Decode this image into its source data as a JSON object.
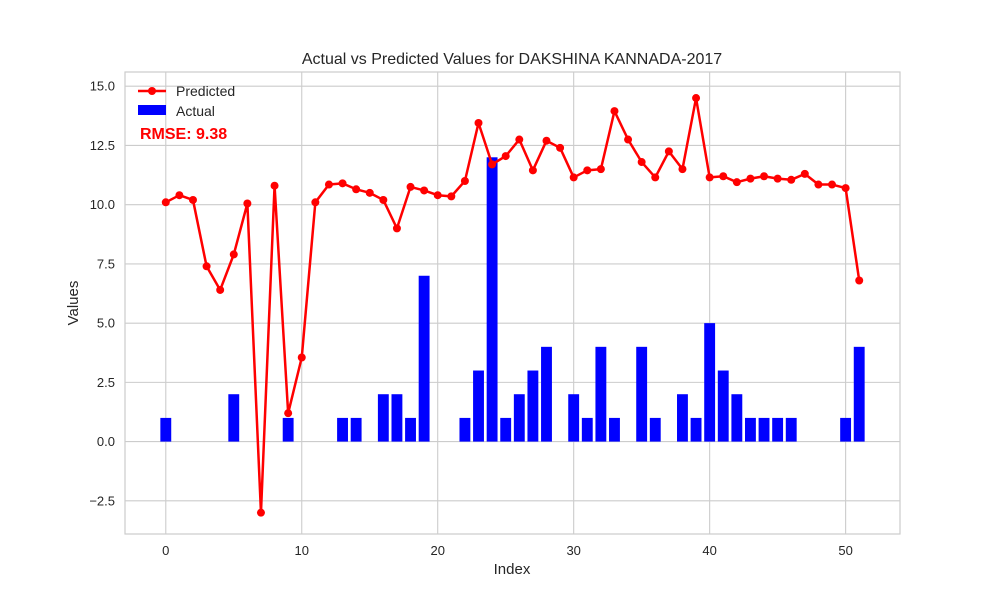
{
  "chart_data": {
    "type": "bar",
    "title": "Actual vs Predicted Values for DAKSHINA KANNADA-2017",
    "xlabel": "Index",
    "ylabel": "Values",
    "xlim": [
      -3,
      54
    ],
    "ylim": [
      -3.9,
      15.6
    ],
    "xticks": [
      0,
      10,
      20,
      30,
      40,
      50
    ],
    "yticks": [
      -2.5,
      0.0,
      2.5,
      5.0,
      7.5,
      10.0,
      12.5,
      15.0
    ],
    "ytick_labels": [
      "−2.5",
      "0.0",
      "2.5",
      "5.0",
      "7.5",
      "10.0",
      "12.5",
      "15.0"
    ],
    "grid": true,
    "legend_position": "top-left",
    "annotation": "RMSE: 9.38",
    "x": [
      0,
      1,
      2,
      3,
      4,
      5,
      6,
      7,
      8,
      9,
      10,
      11,
      12,
      13,
      14,
      15,
      16,
      17,
      18,
      19,
      20,
      21,
      22,
      23,
      24,
      25,
      26,
      27,
      28,
      29,
      30,
      31,
      32,
      33,
      34,
      35,
      36,
      37,
      38,
      39,
      40,
      41,
      42,
      43,
      44,
      45,
      46,
      47,
      48,
      49,
      50,
      51
    ],
    "series": [
      {
        "name": "Predicted",
        "kind": "line",
        "color": "#ff0000",
        "values": [
          10.1,
          10.4,
          10.2,
          7.4,
          6.4,
          7.9,
          10.05,
          -3.0,
          10.8,
          1.2,
          3.55,
          10.1,
          10.85,
          10.9,
          10.65,
          10.5,
          10.2,
          9.0,
          10.75,
          10.6,
          10.4,
          10.35,
          11.0,
          13.45,
          11.7,
          12.05,
          12.75,
          11.45,
          12.7,
          12.4,
          11.15,
          11.45,
          11.5,
          13.95,
          12.75,
          11.8,
          11.15,
          12.25,
          11.5,
          14.5,
          11.15,
          11.2,
          10.95,
          11.1,
          11.2,
          11.1,
          11.05,
          11.3,
          10.85,
          10.85,
          10.7,
          6.8
        ]
      },
      {
        "name": "Actual",
        "kind": "bar",
        "color": "#0000ff",
        "values": [
          1,
          0,
          0,
          0,
          0,
          2,
          0,
          0,
          0,
          1,
          0,
          0,
          0,
          1,
          1,
          0,
          2,
          2,
          1,
          7,
          0,
          0,
          1,
          3,
          12,
          1,
          2,
          3,
          4,
          0,
          2,
          1,
          4,
          1,
          0,
          4,
          1,
          0,
          2,
          1,
          5,
          3,
          2,
          1,
          1,
          1,
          1,
          0,
          0,
          0,
          1,
          4
        ]
      }
    ]
  }
}
